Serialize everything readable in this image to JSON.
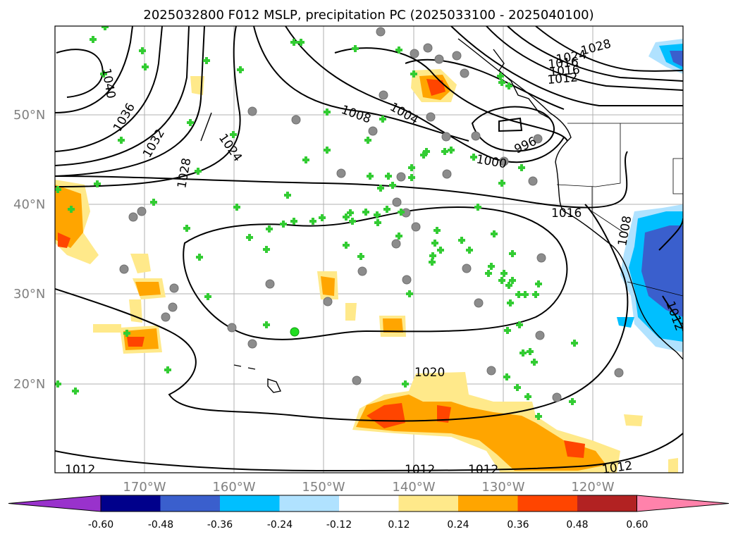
{
  "title": "2025032800 F012 MSLP, precipitation PC (2025033100 - 2025040100)",
  "map": {
    "lat_labels": [
      "50°N",
      "40°N",
      "30°N",
      "20°N"
    ],
    "lon_labels": [
      "170°W",
      "160°W",
      "150°W",
      "140°W",
      "130°W",
      "120°W"
    ],
    "isobar_labels": [
      "1040",
      "1036",
      "1032",
      "1028",
      "1024",
      "1008",
      "1004",
      "1028",
      "1024",
      "1016",
      "1016",
      "1012",
      "1000",
      "996",
      "1016",
      "1008",
      "1012",
      "1020",
      "1012",
      "1012",
      "1012",
      "1012"
    ]
  },
  "colorbar": {
    "ticks": [
      "-0.60",
      "-0.48",
      "-0.36",
      "-0.24",
      "-0.12",
      "0.12",
      "0.24",
      "0.36",
      "0.48",
      "0.60"
    ],
    "colors": [
      "#9932cc",
      "#00008b",
      "#3a5fcd",
      "#00bfff",
      "#b0e2ff",
      "#ffffff",
      "#ffe98a",
      "#ffa500",
      "#ff4500",
      "#b22222",
      "#ff82ab"
    ]
  }
}
